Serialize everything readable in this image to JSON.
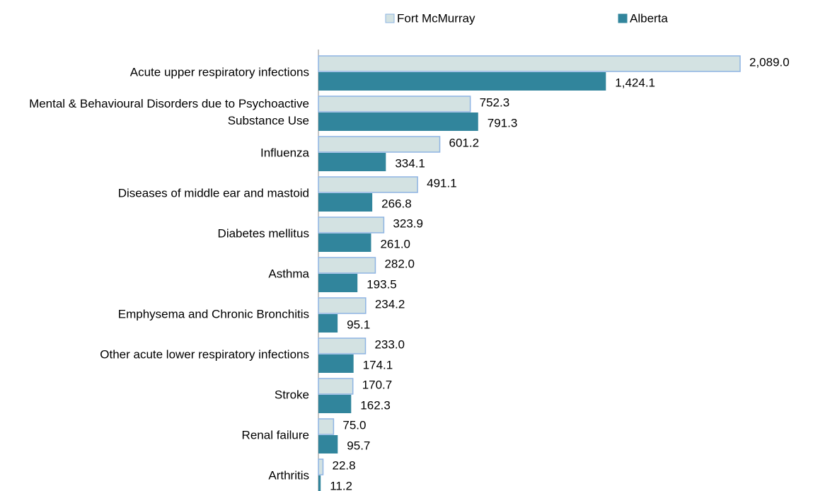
{
  "chart_data": {
    "type": "bar",
    "orientation": "horizontal",
    "categories": [
      "Acute upper respiratory infections",
      "Mental & Behavioural Disorders due to Psychoactive Substance Use",
      "Influenza",
      "Diseases of middle ear and mastoid",
      "Diabetes mellitus",
      "Asthma",
      "Emphysema and Chronic Bronchitis",
      "Other acute lower respiratory infections",
      "Stroke",
      "Renal failure",
      "Arthritis"
    ],
    "series": [
      {
        "name": "Fort McMurray",
        "color": "#d3e2e2",
        "edge_color": "#8eb4e3",
        "values": [
          2089.0,
          752.3,
          601.2,
          491.1,
          323.9,
          282.0,
          234.2,
          233.0,
          170.7,
          75.0,
          22.8
        ],
        "value_labels": [
          "2,089.0",
          "752.3",
          "601.2",
          "491.1",
          "323.9",
          "282.0",
          "234.2",
          "233.0",
          "170.7",
          "75.0",
          "22.8"
        ]
      },
      {
        "name": "Alberta",
        "color": "#31859c",
        "values": [
          1424.1,
          791.3,
          334.1,
          266.8,
          261.0,
          193.5,
          95.1,
          174.1,
          162.3,
          95.7,
          11.2
        ],
        "value_labels": [
          "1,424.1",
          "791.3",
          "334.1",
          "266.8",
          "261.0",
          "193.5",
          "95.1",
          "174.1",
          "162.3",
          "95.7",
          "11.2"
        ]
      }
    ],
    "legend": "top"
  }
}
